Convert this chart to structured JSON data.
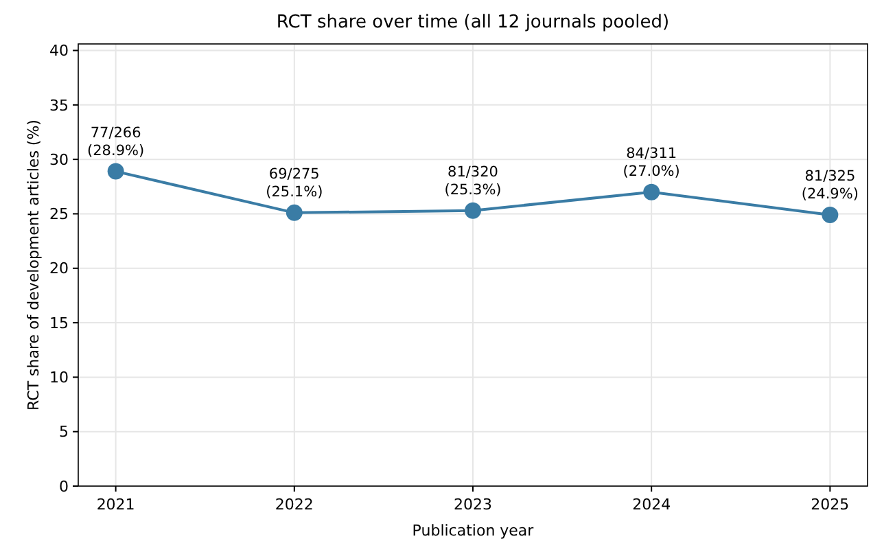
{
  "chart_data": {
    "type": "line",
    "title": "RCT share over time (all 12 journals pooled)",
    "xlabel": "Publication year",
    "ylabel": "RCT share of development articles (%)",
    "categories": [
      "2021",
      "2022",
      "2023",
      "2024",
      "2025"
    ],
    "series": [
      {
        "color": "#3a7ca5",
        "values": [
          28.9,
          25.1,
          25.3,
          27.0,
          24.9
        ],
        "value_labels": [
          "77/266\n(28.9%)",
          "69/275\n(25.1%)",
          "81/320\n(25.3%)",
          "84/311\n(27.0%)",
          "81/325\n(24.9%)"
        ]
      }
    ],
    "ylim": [
      0,
      40.6
    ],
    "yticks": [
      0,
      5,
      10,
      15,
      20,
      25,
      30,
      35,
      40
    ],
    "grid": true,
    "marker": "circle",
    "line_style": "solid"
  }
}
